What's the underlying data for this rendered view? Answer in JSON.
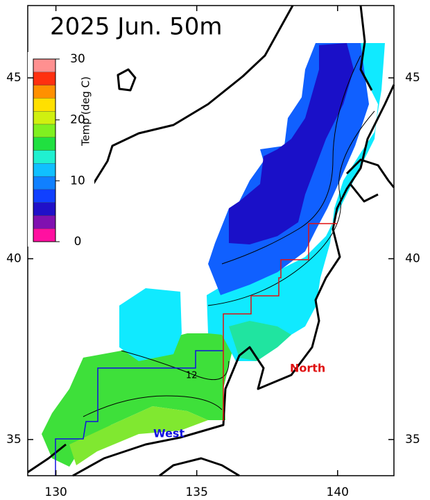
{
  "map": {
    "title": "2025 Jun.   50m",
    "lonlim": [
      129,
      142
    ],
    "latlim": [
      34,
      47
    ],
    "lon_ticks": [
      130,
      135,
      140
    ],
    "lat_ticks": [
      35,
      40,
      45
    ],
    "colorbar": {
      "label": "Temp (deg C)",
      "lim": [
        0,
        30
      ],
      "ticks": [
        0,
        10,
        20,
        30
      ],
      "colors": [
        "#ff10a0",
        "#8010b0",
        "#2010c8",
        "#1040ff",
        "#1080ff",
        "#10c0ff",
        "#20f0d0",
        "#20e040",
        "#80f020",
        "#d0f010",
        "#ffe000",
        "#ff9000",
        "#ff3010",
        "#ff9090"
      ]
    },
    "contour_label": 12,
    "regions": {
      "west": "West",
      "north": "North"
    }
  }
}
